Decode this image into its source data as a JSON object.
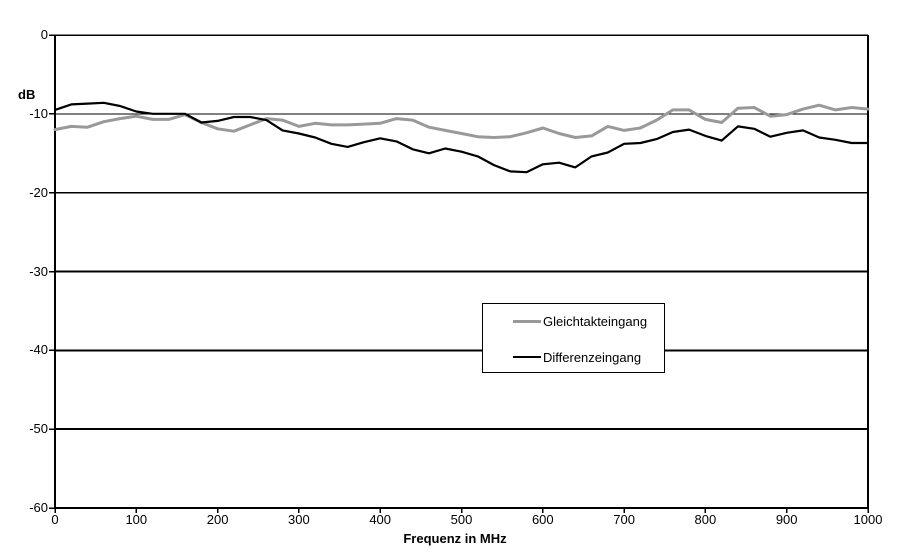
{
  "chart_data": {
    "type": "line",
    "title": "",
    "xlabel": "Frequenz in MHz",
    "ylabel": "dB",
    "xlim": [
      0,
      1000
    ],
    "ylim": [
      -60,
      0
    ],
    "x_ticks": [
      0,
      100,
      200,
      300,
      400,
      500,
      600,
      700,
      800,
      900,
      1000
    ],
    "y_ticks": [
      0,
      -10,
      -20,
      -30,
      -40,
      -50,
      -60
    ],
    "grid": "horizontal-only",
    "legend_position": "center-inside",
    "axis_color": "#000000",
    "background_color": "#ffffff",
    "x": [
      0,
      20,
      40,
      60,
      80,
      100,
      120,
      140,
      160,
      180,
      200,
      220,
      240,
      260,
      280,
      300,
      320,
      340,
      360,
      380,
      400,
      420,
      440,
      460,
      480,
      500,
      520,
      540,
      560,
      580,
      600,
      620,
      640,
      660,
      680,
      700,
      720,
      740,
      760,
      780,
      800,
      820,
      840,
      860,
      880,
      900,
      920,
      940,
      960,
      980,
      1000
    ],
    "series": [
      {
        "name": "Gleichtakteingang",
        "color": "#999999",
        "line_width": 3,
        "values": [
          -12.0,
          -11.6,
          -11.7,
          -11.0,
          -10.6,
          -10.3,
          -10.7,
          -10.7,
          -10.1,
          -11.1,
          -11.9,
          -12.2,
          -11.4,
          -10.6,
          -10.8,
          -11.6,
          -11.2,
          -11.4,
          -11.4,
          -11.3,
          -11.2,
          -10.6,
          -10.8,
          -11.7,
          -12.1,
          -12.5,
          -12.9,
          -13.0,
          -12.9,
          -12.4,
          -11.8,
          -12.5,
          -13.0,
          -12.8,
          -11.6,
          -12.1,
          -11.8,
          -10.8,
          -9.5,
          -9.5,
          -10.7,
          -11.1,
          -9.3,
          -9.2,
          -10.3,
          -10.1,
          -9.4,
          -8.9,
          -9.5,
          -9.2,
          -9.4
        ]
      },
      {
        "name": "Differenzeingang",
        "color": "#000000",
        "line_width": 2.2,
        "values": [
          -9.5,
          -8.8,
          -8.7,
          -8.6,
          -9.0,
          -9.7,
          -10.0,
          -10.0,
          -10.0,
          -11.1,
          -10.9,
          -10.4,
          -10.4,
          -10.8,
          -12.1,
          -12.5,
          -13.0,
          -13.8,
          -14.2,
          -13.6,
          -13.1,
          -13.5,
          -14.5,
          -15.0,
          -14.4,
          -14.8,
          -15.4,
          -16.5,
          -17.3,
          -17.4,
          -16.4,
          -16.2,
          -16.8,
          -15.4,
          -14.9,
          -13.8,
          -13.7,
          -13.2,
          -12.3,
          -12.0,
          -12.8,
          -13.4,
          -11.6,
          -11.9,
          -12.9,
          -12.4,
          -12.1,
          -13.0,
          -13.3,
          -13.7,
          -13.7
        ]
      }
    ]
  }
}
